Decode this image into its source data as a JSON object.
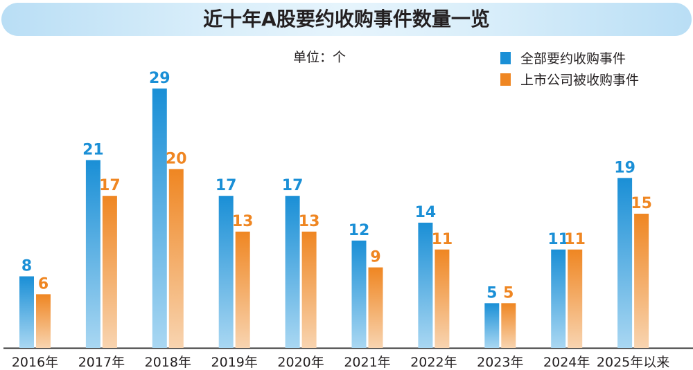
{
  "chart_data": {
    "type": "bar",
    "title": "近十年A股要约收购事件数量一览",
    "unit": "单位：个",
    "categories": [
      "2016年",
      "2017年",
      "2018年",
      "2019年",
      "2020年",
      "2021年",
      "2022年",
      "2023年",
      "2024年",
      "2025年以来"
    ],
    "series": [
      {
        "name": "全部要约收购事件",
        "color": "#1a8fd6",
        "values": [
          8,
          21,
          29,
          17,
          17,
          12,
          14,
          5,
          11,
          19
        ]
      },
      {
        "name": "上市公司被收购事件",
        "color": "#ef8622",
        "values": [
          6,
          17,
          20,
          13,
          13,
          9,
          11,
          5,
          11,
          15
        ]
      }
    ],
    "ylim": [
      0,
      29
    ],
    "grid": false,
    "legend": "top-right",
    "data_labels": true
  }
}
